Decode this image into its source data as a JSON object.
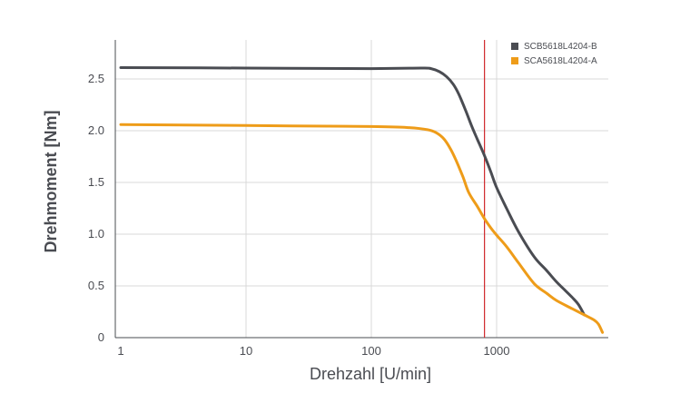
{
  "chart_data": {
    "type": "line",
    "title": "",
    "xlabel": "Drehzahl [U/min]",
    "ylabel": "Drehmoment [Nm]",
    "xscale": "log",
    "xlim": [
      1,
      7500
    ],
    "ylim": [
      0,
      2.85
    ],
    "grid": true,
    "legend_position": "top-right",
    "x_ticks": [
      {
        "value": 1,
        "label": "1"
      },
      {
        "value": 10,
        "label": "10"
      },
      {
        "value": 100,
        "label": "100"
      },
      {
        "value": 1000,
        "label": "1000"
      }
    ],
    "y_ticks": [
      {
        "value": 0,
        "label": "0"
      },
      {
        "value": 0.5,
        "label": "0.5"
      },
      {
        "value": 1.0,
        "label": "1.0"
      },
      {
        "value": 1.5,
        "label": "1.5"
      },
      {
        "value": 2.0,
        "label": "2.0"
      },
      {
        "value": 2.5,
        "label": "2.5"
      }
    ],
    "reference_line": {
      "x": 800,
      "color": "#d0282c"
    },
    "series": [
      {
        "name": "SCB5618L4204-B",
        "color": "#4a4c52",
        "points": [
          [
            1,
            2.61
          ],
          [
            10,
            2.605
          ],
          [
            100,
            2.6
          ],
          [
            250,
            2.605
          ],
          [
            300,
            2.6
          ],
          [
            350,
            2.57
          ],
          [
            400,
            2.52
          ],
          [
            450,
            2.45
          ],
          [
            500,
            2.35
          ],
          [
            560,
            2.21
          ],
          [
            630,
            2.05
          ],
          [
            700,
            1.92
          ],
          [
            800,
            1.76
          ],
          [
            900,
            1.6
          ],
          [
            1000,
            1.45
          ],
          [
            1200,
            1.25
          ],
          [
            1500,
            1.02
          ],
          [
            2000,
            0.78
          ],
          [
            2500,
            0.65
          ],
          [
            3000,
            0.54
          ],
          [
            3500,
            0.46
          ],
          [
            4000,
            0.39
          ],
          [
            4500,
            0.32
          ],
          [
            5000,
            0.22
          ]
        ]
      },
      {
        "name": "SCA5618L4204-A",
        "color": "#ee9c19",
        "points": [
          [
            1,
            2.06
          ],
          [
            10,
            2.05
          ],
          [
            100,
            2.04
          ],
          [
            200,
            2.03
          ],
          [
            280,
            2.01
          ],
          [
            330,
            1.98
          ],
          [
            380,
            1.92
          ],
          [
            430,
            1.82
          ],
          [
            480,
            1.7
          ],
          [
            540,
            1.55
          ],
          [
            600,
            1.4
          ],
          [
            700,
            1.27
          ],
          [
            800,
            1.15
          ],
          [
            900,
            1.06
          ],
          [
            1000,
            0.99
          ],
          [
            1200,
            0.88
          ],
          [
            1500,
            0.72
          ],
          [
            2000,
            0.52
          ],
          [
            2500,
            0.43
          ],
          [
            3000,
            0.36
          ],
          [
            4000,
            0.28
          ],
          [
            5000,
            0.22
          ],
          [
            6000,
            0.17
          ],
          [
            6500,
            0.13
          ],
          [
            7000,
            0.05
          ]
        ]
      }
    ]
  }
}
